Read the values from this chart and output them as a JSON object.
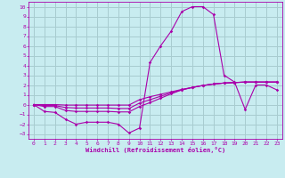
{
  "xlabel": "Windchill (Refroidissement éolien,°C)",
  "bg_color": "#c8ecf0",
  "grid_color": "#a8ccd0",
  "line_color": "#aa00aa",
  "xlim": [
    -0.5,
    23.5
  ],
  "ylim": [
    -3.5,
    10.5
  ],
  "xticks": [
    0,
    1,
    2,
    3,
    4,
    5,
    6,
    7,
    8,
    9,
    10,
    11,
    12,
    13,
    14,
    15,
    16,
    17,
    18,
    19,
    20,
    21,
    22,
    23
  ],
  "yticks": [
    -3,
    -2,
    -1,
    0,
    1,
    2,
    3,
    4,
    5,
    6,
    7,
    8,
    9,
    10
  ],
  "line1_x": [
    0,
    1,
    2,
    3,
    4,
    5,
    6,
    7,
    8,
    9,
    10,
    11,
    12,
    13,
    14,
    15,
    16,
    17,
    18,
    19,
    20,
    21,
    22,
    23
  ],
  "line1_y": [
    0,
    -0.7,
    -0.8,
    -1.5,
    -2.0,
    -1.8,
    -1.8,
    -1.8,
    -2.0,
    -2.9,
    -2.4,
    4.3,
    6.0,
    7.5,
    9.5,
    10.0,
    10.0,
    9.2,
    3.0,
    2.3,
    -0.5,
    2.0,
    2.0,
    1.5
  ],
  "line2_x": [
    0,
    1,
    2,
    3,
    4,
    5,
    6,
    7,
    8,
    9,
    10,
    11,
    12,
    13,
    14,
    15,
    16,
    17,
    18,
    19,
    20,
    21,
    22,
    23
  ],
  "line2_y": [
    0,
    0.0,
    0.0,
    -0.05,
    -0.05,
    -0.05,
    -0.05,
    -0.05,
    -0.05,
    -0.05,
    0.5,
    0.8,
    1.05,
    1.3,
    1.55,
    1.75,
    1.95,
    2.1,
    2.2,
    2.25,
    2.3,
    2.3,
    2.3,
    2.3
  ],
  "line3_x": [
    0,
    1,
    2,
    3,
    4,
    5,
    6,
    7,
    8,
    9,
    10,
    11,
    12,
    13,
    14,
    15,
    16,
    17,
    18,
    19,
    20,
    21,
    22,
    23
  ],
  "line3_y": [
    0,
    -0.1,
    -0.1,
    -0.3,
    -0.35,
    -0.35,
    -0.35,
    -0.35,
    -0.4,
    -0.4,
    0.15,
    0.5,
    0.85,
    1.2,
    1.5,
    1.75,
    1.95,
    2.1,
    2.2,
    2.25,
    2.3,
    2.3,
    2.3,
    2.3
  ],
  "line4_x": [
    0,
    1,
    2,
    3,
    4,
    5,
    6,
    7,
    8,
    9,
    10,
    11,
    12,
    13,
    14,
    15,
    16,
    17,
    18,
    19,
    20,
    21,
    22,
    23
  ],
  "line4_y": [
    0,
    -0.2,
    -0.2,
    -0.6,
    -0.7,
    -0.7,
    -0.7,
    -0.7,
    -0.75,
    -0.75,
    -0.2,
    0.2,
    0.65,
    1.1,
    1.5,
    1.75,
    1.95,
    2.1,
    2.2,
    2.25,
    2.3,
    2.3,
    2.3,
    2.3
  ]
}
